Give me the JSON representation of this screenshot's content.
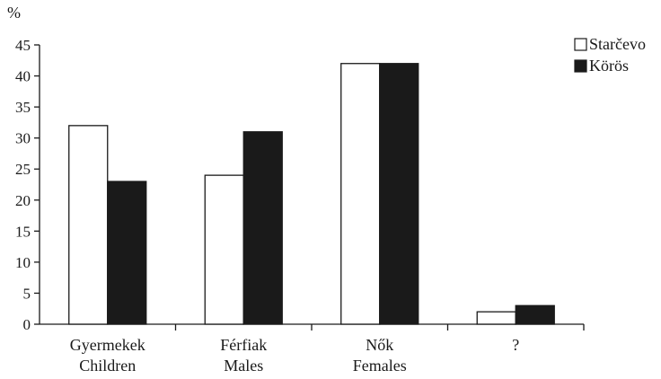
{
  "chart_data": {
    "type": "bar",
    "ylabel": "%",
    "ylim": [
      0,
      45
    ],
    "yticks": [
      0,
      5,
      10,
      15,
      20,
      25,
      30,
      35,
      40,
      45
    ],
    "categories": [
      [
        "Gyermekek",
        "Children"
      ],
      [
        "Férfiak",
        "Males"
      ],
      [
        "Nők",
        "Females"
      ],
      [
        "?"
      ]
    ],
    "series": [
      {
        "name": "Starčevo",
        "fill": "#ffffff",
        "values": [
          32,
          24,
          42,
          2
        ]
      },
      {
        "name": "Körös",
        "fill": "#1a1a1a",
        "values": [
          23,
          31,
          42,
          3
        ]
      }
    ],
    "legend_position": "top-right",
    "grid": false
  }
}
